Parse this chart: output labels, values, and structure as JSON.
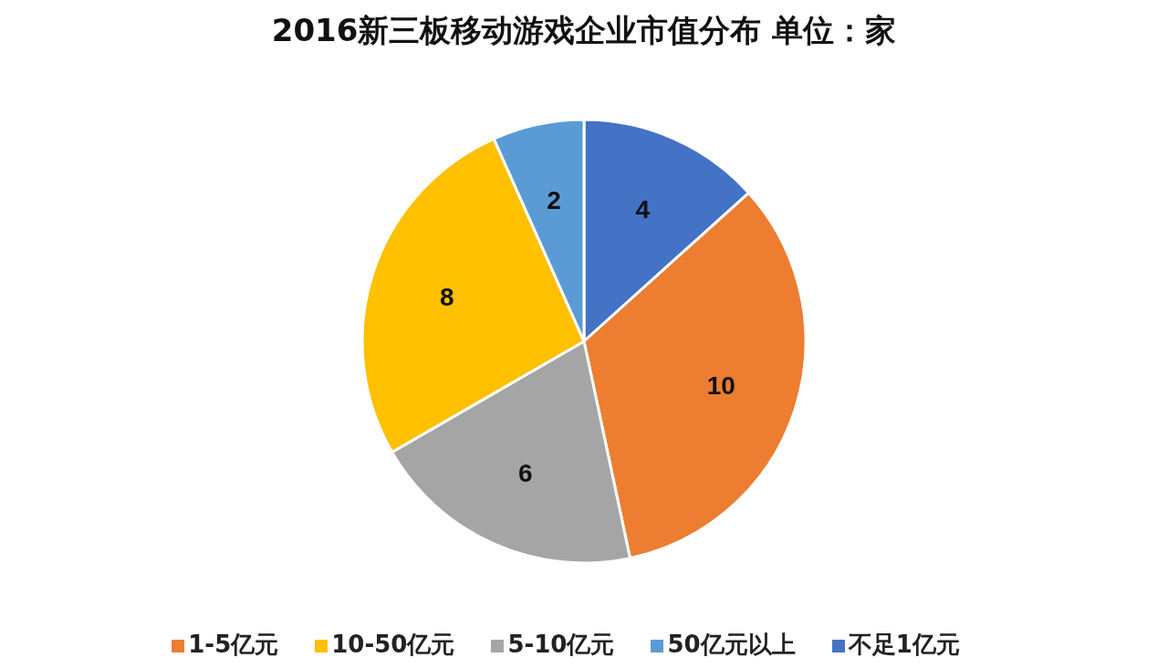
{
  "chart_data": {
    "type": "pie",
    "title": "2016新三板移动游戏企业市值分布  单位：家",
    "categories": [
      "不足1亿元",
      "1-5亿元",
      "5-10亿元",
      "10-50亿元",
      "50亿元以上"
    ],
    "values": [
      4,
      10,
      6,
      8,
      2
    ],
    "colors": [
      "#4472c4",
      "#ed7d31",
      "#a5a5a5",
      "#ffc000",
      "#5b9bd5"
    ],
    "data_labels": true,
    "legend": "bottom"
  }
}
